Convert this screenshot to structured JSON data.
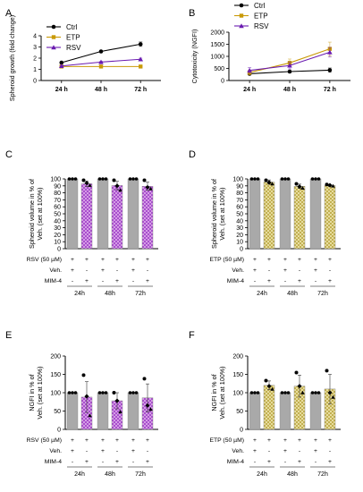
{
  "colors": {
    "ctrl": "#000000",
    "etp": "#c99a08",
    "rsv": "#6a1bb0",
    "gray_bar": "#a9a9a9",
    "rsv_fill": "#e2b3ee",
    "rsv_hatch": "#a040c8",
    "etp_fill": "#f2e8b2",
    "etp_hatch": "#b9a640"
  },
  "chart_data": [
    {
      "id": "A",
      "type": "line",
      "panel_label": "A",
      "ylabel": "Spheroid growth (fold change)",
      "categories": [
        "24 h",
        "48 h",
        "72 h"
      ],
      "ylim": [
        0,
        4
      ],
      "yticks": [
        0,
        1,
        2,
        3,
        4
      ],
      "legend": {
        "position": "top-left"
      },
      "series": [
        {
          "name": "Ctrl",
          "color_key": "ctrl",
          "marker": "circle",
          "values": [
            1.6,
            2.6,
            3.25
          ],
          "err": [
            0.05,
            0.06,
            0.2
          ]
        },
        {
          "name": "ETP",
          "color_key": "etp",
          "marker": "square",
          "values": [
            1.25,
            1.25,
            1.25
          ],
          "err": [
            0.03,
            0.03,
            0.03
          ]
        },
        {
          "name": "RSV",
          "color_key": "rsv",
          "marker": "triangle",
          "values": [
            1.3,
            1.65,
            1.9
          ],
          "err": [
            0.05,
            0.08,
            0.1
          ]
        }
      ]
    },
    {
      "id": "B",
      "type": "line",
      "panel_label": "B",
      "ylabel": "Cytotoxicity (NGFI)",
      "categories": [
        "24 h",
        "48 h",
        "72 h"
      ],
      "ylim": [
        0,
        2000
      ],
      "yticks": [
        0,
        500,
        1000,
        1500,
        2000
      ],
      "legend": {
        "position": "top-left"
      },
      "series": [
        {
          "name": "Ctrl",
          "color_key": "ctrl",
          "marker": "circle",
          "values": [
            280,
            370,
            430
          ],
          "err": [
            40,
            30,
            90
          ]
        },
        {
          "name": "ETP",
          "color_key": "etp",
          "marker": "square",
          "values": [
            330,
            730,
            1310
          ],
          "err": [
            100,
            160,
            280
          ]
        },
        {
          "name": "RSV",
          "color_key": "rsv",
          "marker": "triangle",
          "values": [
            420,
            620,
            1170
          ],
          "err": [
            120,
            140,
            200
          ]
        }
      ]
    },
    {
      "id": "C",
      "type": "bar",
      "panel_label": "C",
      "ylabel_lines": [
        "Spheroid volume in % of",
        "Veh. (set at 100%)"
      ],
      "ylim": [
        0,
        100
      ],
      "yticks": [
        0,
        10,
        20,
        30,
        40,
        50,
        60,
        70,
        80,
        90,
        100
      ],
      "bars": [
        {
          "style": "gray",
          "value": 100,
          "err": 0,
          "points": [
            100,
            100,
            100
          ]
        },
        {
          "style": "rsv",
          "value": 93,
          "err": 4,
          "points": [
            98,
            94,
            91
          ]
        },
        {
          "style": "gray",
          "value": 100,
          "err": 0,
          "points": [
            100,
            100,
            100
          ]
        },
        {
          "style": "rsv",
          "value": 90.5,
          "err": 6,
          "points": [
            98,
            90,
            84
          ]
        },
        {
          "style": "gray",
          "value": 100,
          "err": 0,
          "points": [
            100,
            100,
            100
          ]
        },
        {
          "style": "rsv",
          "value": 89.5,
          "err": 6,
          "points": [
            98,
            88,
            86
          ]
        }
      ],
      "rows": [
        {
          "label": "RSV (50 µM)",
          "values": [
            "+",
            "+",
            "+",
            "+",
            "+",
            "+"
          ]
        },
        {
          "label": "Veh.",
          "values": [
            "+",
            "-",
            "+",
            "-",
            "+",
            "-"
          ]
        },
        {
          "label": "MIM-4",
          "values": [
            "-",
            "+",
            "-",
            "+",
            "-",
            "+"
          ]
        }
      ],
      "groups": [
        "24h",
        "48h",
        "72h"
      ]
    },
    {
      "id": "D",
      "type": "bar",
      "panel_label": "D",
      "ylabel_lines": [
        "Spheroid volume in % of",
        "Veh. (set at 100%)"
      ],
      "ylim": [
        0,
        100
      ],
      "yticks": [
        0,
        10,
        20,
        30,
        40,
        50,
        60,
        70,
        80,
        90,
        100
      ],
      "bars": [
        {
          "style": "gray",
          "value": 100,
          "err": 0,
          "points": [
            100,
            100,
            100
          ]
        },
        {
          "style": "etp",
          "value": 95.5,
          "err": 3,
          "points": [
            98,
            95,
            93
          ]
        },
        {
          "style": "gray",
          "value": 100,
          "err": 0,
          "points": [
            100,
            100,
            100
          ]
        },
        {
          "style": "etp",
          "value": 89.5,
          "err": 3,
          "points": [
            93,
            89,
            87
          ]
        },
        {
          "style": "gray",
          "value": 100,
          "err": 0,
          "points": [
            100,
            100,
            100
          ]
        },
        {
          "style": "etp",
          "value": 90.5,
          "err": 1.2,
          "points": [
            92,
            91,
            90
          ]
        }
      ],
      "rows": [
        {
          "label": "ETP (50 µM)",
          "values": [
            "+",
            "+",
            "+",
            "+",
            "+",
            "+"
          ]
        },
        {
          "label": "Veh.",
          "values": [
            "+",
            "-",
            "+",
            "-",
            "+",
            "-"
          ]
        },
        {
          "label": "MIM-4",
          "values": [
            "-",
            "+",
            "-",
            "+",
            "-",
            "+"
          ]
        }
      ],
      "groups": [
        "24h",
        "48h",
        "72h"
      ]
    },
    {
      "id": "E",
      "type": "bar",
      "panel_label": "E",
      "ylabel_lines": [
        "NGFI in % of",
        "Veh. (set at 100%)"
      ],
      "ylim": [
        0,
        200
      ],
      "yticks": [
        0,
        50,
        100,
        150,
        200
      ],
      "bars": [
        {
          "style": "gray",
          "value": 100,
          "err": 0,
          "points": [
            100,
            100,
            100
          ]
        },
        {
          "style": "rsv",
          "value": 88,
          "err": 42,
          "points": [
            148,
            90,
            38
          ]
        },
        {
          "style": "gray",
          "value": 100,
          "err": 0,
          "points": [
            100,
            100,
            100
          ]
        },
        {
          "style": "rsv",
          "value": 78,
          "err": 22,
          "points": [
            100,
            78,
            48
          ]
        },
        {
          "style": "gray",
          "value": 100,
          "err": 0,
          "points": [
            100,
            100,
            100
          ]
        },
        {
          "style": "rsv",
          "value": 86,
          "err": 38,
          "points": [
            138,
            65,
            55
          ]
        }
      ],
      "rows": [
        {
          "label": "RSV (50 µM)",
          "values": [
            "+",
            "+",
            "+",
            "+",
            "+",
            "+"
          ]
        },
        {
          "label": "Veh.",
          "values": [
            "+",
            "-",
            "+",
            "-",
            "+",
            "-"
          ]
        },
        {
          "label": "MIM-4",
          "values": [
            "-",
            "+",
            "-",
            "+",
            "-",
            "+"
          ]
        }
      ],
      "groups": [
        "24h",
        "48h",
        "72h"
      ]
    },
    {
      "id": "F",
      "type": "bar",
      "panel_label": "F",
      "ylabel_lines": [
        "NGFI in % of",
        "Veh. (set at 100%)"
      ],
      "ylim": [
        0,
        200
      ],
      "yticks": [
        0,
        50,
        100,
        150,
        200
      ],
      "bars": [
        {
          "style": "gray",
          "value": 100,
          "err": 0,
          "points": [
            100,
            100,
            100
          ]
        },
        {
          "style": "etp",
          "value": 120,
          "err": 12,
          "points": [
            133,
            118,
            110
          ]
        },
        {
          "style": "gray",
          "value": 100,
          "err": 0,
          "points": [
            100,
            100,
            100
          ]
        },
        {
          "style": "etp",
          "value": 118,
          "err": 30,
          "points": [
            155,
            118,
            100
          ]
        },
        {
          "style": "gray",
          "value": 100,
          "err": 0,
          "points": [
            100,
            100,
            100
          ]
        },
        {
          "style": "etp",
          "value": 110,
          "err": 40,
          "points": [
            160,
            100,
            88
          ]
        }
      ],
      "rows": [
        {
          "label": "ETP (50 µM)",
          "values": [
            "+",
            "+",
            "+",
            "+",
            "+",
            "+"
          ]
        },
        {
          "label": "Veh.",
          "values": [
            "+",
            "-",
            "+",
            "-",
            "+",
            "-"
          ]
        },
        {
          "label": "MIM-4",
          "values": [
            "-",
            "+",
            "-",
            "+",
            "-",
            "+"
          ]
        }
      ],
      "groups": [
        "24h",
        "48h",
        "72h"
      ]
    }
  ]
}
